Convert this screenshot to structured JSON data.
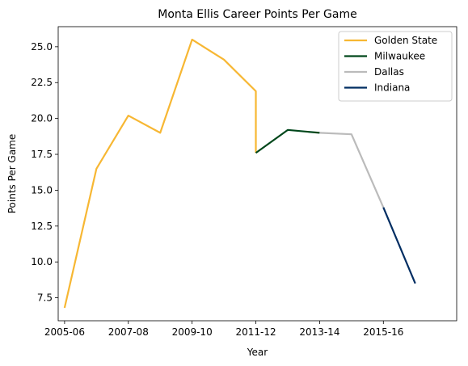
{
  "chart_data": {
    "type": "line",
    "title": "Monta Ellis Career Points Per Game",
    "xlabel": "Year",
    "ylabel": "Points Per Game",
    "x_ticks": [
      "2005-06",
      "2007-08",
      "2009-10",
      "2011-12",
      "2013-14",
      "2015-16"
    ],
    "y_ticks": [
      "7.5",
      "10.0",
      "12.5",
      "15.0",
      "17.5",
      "20.0",
      "22.5",
      "25.0"
    ],
    "xlim": [
      2004.8,
      2017.3
    ],
    "ylim": [
      5.9,
      26.4
    ],
    "legend_position": "top-right",
    "grid": false,
    "series": [
      {
        "name": "Golden State",
        "color": "#f7b733",
        "points": [
          {
            "x": 2005,
            "y": 6.8
          },
          {
            "x": 2006,
            "y": 16.5
          },
          {
            "x": 2007,
            "y": 20.2
          },
          {
            "x": 2008,
            "y": 19.0
          },
          {
            "x": 2009,
            "y": 25.5
          },
          {
            "x": 2010,
            "y": 24.1
          },
          {
            "x": 2011,
            "y": 21.9
          },
          {
            "x": 2011,
            "y": 17.6
          }
        ]
      },
      {
        "name": "Milwaukee",
        "color": "#00471b",
        "points": [
          {
            "x": 2011,
            "y": 17.6
          },
          {
            "x": 2012,
            "y": 19.2
          },
          {
            "x": 2013,
            "y": 19.0
          }
        ]
      },
      {
        "name": "Dallas",
        "color": "#bbbbbb",
        "points": [
          {
            "x": 2013,
            "y": 19.0
          },
          {
            "x": 2014,
            "y": 18.9
          },
          {
            "x": 2015,
            "y": 13.8
          }
        ]
      },
      {
        "name": "Indiana",
        "color": "#002d62",
        "points": [
          {
            "x": 2015,
            "y": 13.8
          },
          {
            "x": 2016,
            "y": 8.5
          }
        ]
      }
    ]
  }
}
